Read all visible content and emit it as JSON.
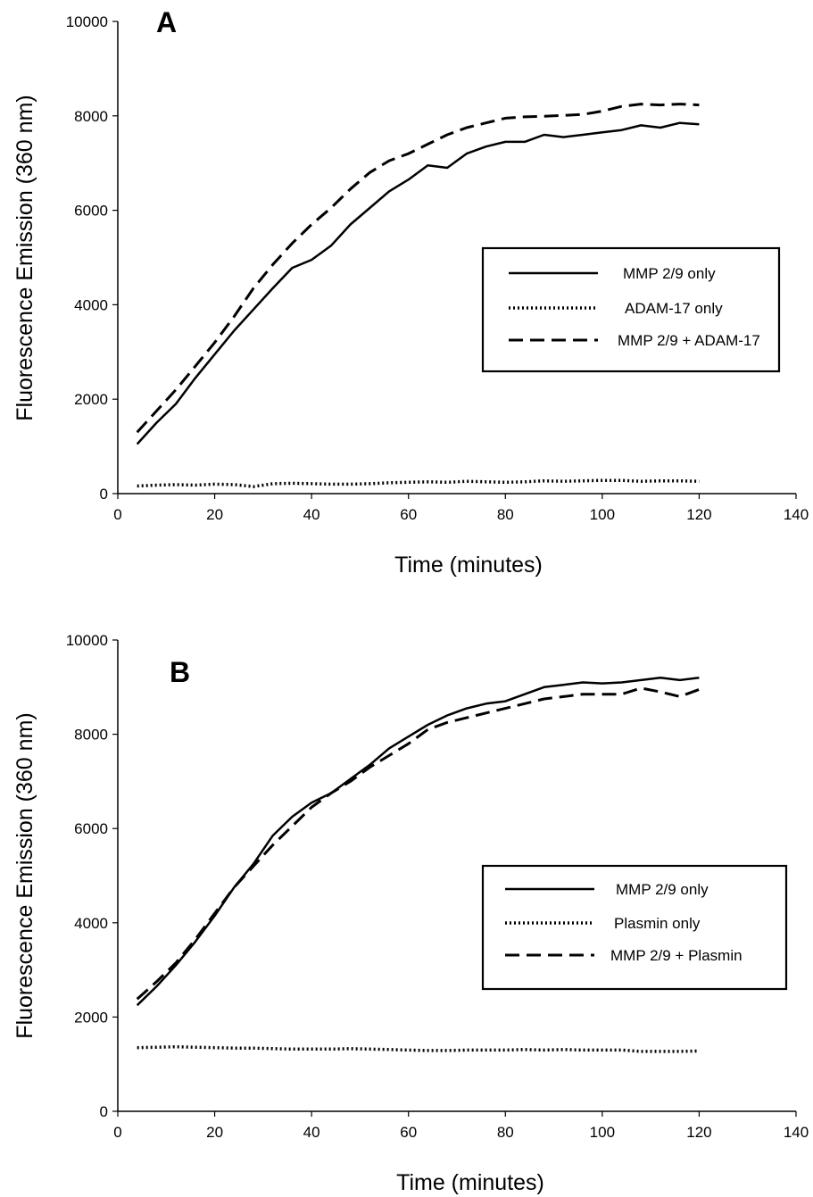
{
  "chart_data": [
    {
      "type": "line",
      "panel_label": "A",
      "xlabel": "Time (minutes)",
      "ylabel": "Fluorescence Emission (360 nm)",
      "xlim": [
        0,
        140
      ],
      "ylim": [
        0,
        10000
      ],
      "x_ticks": [
        0,
        20,
        40,
        60,
        80,
        100,
        120,
        140
      ],
      "y_ticks": [
        0,
        2000,
        4000,
        6000,
        8000,
        10000
      ],
      "grid": false,
      "legend_position": "right",
      "x": [
        4,
        8,
        12,
        16,
        20,
        24,
        28,
        32,
        36,
        40,
        44,
        48,
        52,
        56,
        60,
        64,
        68,
        72,
        76,
        80,
        84,
        88,
        92,
        96,
        100,
        104,
        108,
        112,
        116,
        120
      ],
      "series": [
        {
          "name": "MMP 2/9 only",
          "style": "solid",
          "values": [
            1050,
            1500,
            1900,
            2450,
            2950,
            3450,
            3900,
            4350,
            4780,
            4950,
            5250,
            5700,
            6050,
            6400,
            6650,
            6950,
            6900,
            7200,
            7350,
            7450,
            7450,
            7600,
            7550,
            7600,
            7650,
            7700,
            7800,
            7750,
            7850,
            7820
          ]
        },
        {
          "name": "ADAM-17 only",
          "style": "dotted",
          "values": [
            160,
            180,
            190,
            180,
            200,
            190,
            150,
            210,
            220,
            210,
            200,
            200,
            210,
            230,
            240,
            250,
            240,
            260,
            250,
            240,
            250,
            270,
            260,
            270,
            280,
            280,
            260,
            270,
            270,
            260
          ]
        },
        {
          "name": "MMP 2/9 + ADAM-17",
          "style": "dashed",
          "values": [
            1300,
            1750,
            2200,
            2700,
            3200,
            3750,
            4350,
            4850,
            5300,
            5700,
            6050,
            6450,
            6800,
            7050,
            7200,
            7400,
            7600,
            7750,
            7850,
            7950,
            7980,
            7990,
            8010,
            8030,
            8100,
            8200,
            8250,
            8230,
            8250,
            8230
          ]
        }
      ]
    },
    {
      "type": "line",
      "panel_label": "B",
      "xlabel": "Time (minutes)",
      "ylabel": "Fluorescence Emission (360 nm)",
      "xlim": [
        0,
        140
      ],
      "ylim": [
        0,
        10000
      ],
      "x_ticks": [
        0,
        20,
        40,
        60,
        80,
        100,
        120,
        140
      ],
      "y_ticks": [
        0,
        2000,
        4000,
        6000,
        8000,
        10000
      ],
      "grid": false,
      "legend_position": "right",
      "x": [
        4,
        8,
        12,
        16,
        20,
        24,
        28,
        32,
        36,
        40,
        44,
        48,
        52,
        56,
        60,
        64,
        68,
        72,
        76,
        80,
        84,
        88,
        92,
        96,
        100,
        104,
        108,
        112,
        116,
        120
      ],
      "series": [
        {
          "name": "MMP 2/9 only",
          "style": "solid",
          "values": [
            2250,
            2650,
            3100,
            3600,
            4150,
            4750,
            5250,
            5850,
            6250,
            6550,
            6750,
            7050,
            7350,
            7700,
            7950,
            8200,
            8400,
            8550,
            8650,
            8700,
            8850,
            9000,
            9050,
            9100,
            9080,
            9100,
            9150,
            9200,
            9150,
            9200
          ]
        },
        {
          "name": "Plasmin only",
          "style": "dotted",
          "values": [
            1350,
            1360,
            1370,
            1360,
            1350,
            1340,
            1340,
            1330,
            1320,
            1320,
            1320,
            1330,
            1320,
            1310,
            1300,
            1290,
            1290,
            1300,
            1300,
            1300,
            1310,
            1300,
            1310,
            1300,
            1300,
            1300,
            1270,
            1270,
            1270,
            1280
          ]
        },
        {
          "name": "MMP 2/9 + Plasmin",
          "style": "dashed",
          "values": [
            2380,
            2750,
            3150,
            3650,
            4200,
            4750,
            5200,
            5650,
            6050,
            6450,
            6750,
            7000,
            7300,
            7550,
            7800,
            8100,
            8250,
            8350,
            8450,
            8550,
            8650,
            8750,
            8800,
            8850,
            8850,
            8850,
            8980,
            8900,
            8800,
            8950
          ]
        }
      ]
    }
  ]
}
